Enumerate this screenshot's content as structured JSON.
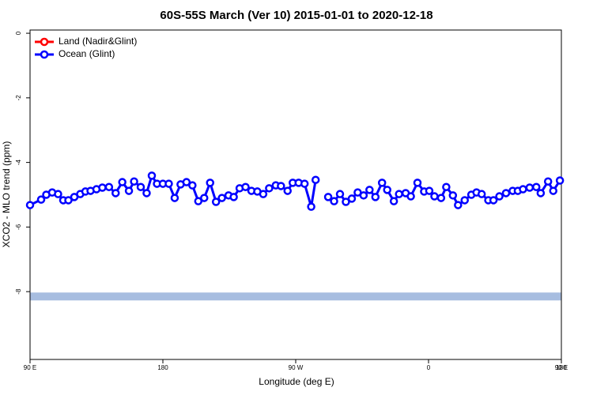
{
  "chart_data": {
    "type": "line",
    "title": "60S-55S March (Ver 10)   2015-01-01 to 2020-12-18",
    "xlabel": "Longitude (deg E)",
    "ylabel": "XCO2 - MLO trend (ppm)",
    "xlim": [
      90,
      450
    ],
    "xticks": [
      {
        "value": 90,
        "label": "90 E"
      },
      {
        "value": 180,
        "label": "180"
      },
      {
        "value": 270,
        "label": "90 W"
      },
      {
        "value": 360,
        "label": "0"
      },
      {
        "value": 450,
        "label": "90 E"
      },
      {
        "value": 540,
        "label": "180"
      }
    ],
    "ylim": [
      -10.1,
      0.1
    ],
    "yticks": [
      0,
      -2,
      -4,
      -6,
      -8
    ],
    "legend": "top-left",
    "reference_band": {
      "y": -8.15,
      "color": "#a7bde0"
    },
    "x": [
      90,
      97.5,
      101,
      105,
      109,
      112.5,
      116,
      120,
      124,
      127.5,
      131,
      135,
      139,
      143.5,
      148,
      152.5,
      157,
      160.5,
      165,
      169,
      172.5,
      176,
      180,
      184,
      188,
      192,
      196,
      200,
      204,
      208,
      212,
      216,
      220,
      224.5,
      228,
      232,
      236,
      240,
      244,
      248,
      252,
      256.5,
      260,
      264.5,
      268,
      272,
      276,
      280.5,
      283.5,
      288,
      292,
      296,
      300,
      304,
      308,
      312,
      316,
      320,
      324,
      328.5,
      332,
      336.5,
      340,
      344.5,
      348,
      352.5,
      357,
      360.5,
      364,
      368.5,
      372,
      376.5,
      380,
      384.5,
      389,
      392.5,
      396,
      400.5,
      404,
      408,
      412.5,
      417,
      420.5,
      424,
      428.5,
      433,
      436,
      441,
      444.5,
      449
    ],
    "series": [
      {
        "name": "Land (Nadir&Glint)",
        "color": "#ff0000"
      },
      {
        "name": "Ocean (Glint)",
        "color": "#0000ff",
        "values": [
          -5.32,
          -5.15,
          -5.0,
          -4.93,
          -4.98,
          -5.17,
          -5.17,
          -5.07,
          -4.98,
          -4.9,
          -4.88,
          -4.83,
          -4.78,
          -4.76,
          -4.95,
          -4.61,
          -4.88,
          -4.59,
          -4.76,
          -4.95,
          -4.41,
          -4.66,
          -4.66,
          -4.66,
          -5.1,
          -4.68,
          -4.61,
          -4.71,
          -5.2,
          -5.1,
          -4.63,
          -5.22,
          -5.1,
          -5.02,
          -5.07,
          -4.8,
          -4.76,
          -4.88,
          -4.9,
          -4.98,
          -4.8,
          -4.71,
          -4.73,
          -4.88,
          -4.63,
          -4.63,
          -4.66,
          -5.37,
          -4.54,
          null,
          -5.07,
          -5.2,
          -4.98,
          -5.22,
          -5.12,
          -4.93,
          -5.02,
          -4.85,
          -5.07,
          -4.63,
          -4.85,
          -5.2,
          -4.98,
          -4.95,
          -5.05,
          -4.63,
          -4.9,
          -4.88,
          -5.05,
          -5.1,
          -4.76,
          -5.02,
          -5.32,
          -5.17,
          -5.0,
          -4.93,
          -4.98,
          -5.17,
          -5.17,
          -5.05,
          -4.95,
          -4.88,
          -4.88,
          -4.83,
          -4.78,
          -4.76,
          -4.95,
          -4.59,
          -4.88,
          -4.56
        ]
      }
    ]
  }
}
